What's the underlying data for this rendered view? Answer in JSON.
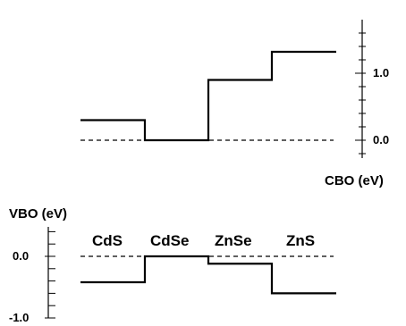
{
  "colors": {
    "line": "#000000",
    "background": "#ffffff"
  },
  "chart_data": [
    {
      "type": "line",
      "title": "",
      "xlabel": "",
      "ylabel": "CBO (eV)",
      "ylim": [
        -0.1,
        1.6
      ],
      "categories": [
        "CdS",
        "CdSe",
        "ZnSe",
        "ZnS"
      ],
      "values": [
        0.3,
        0.0,
        0.9,
        1.32
      ],
      "y_ticks": [
        0.0,
        1.0
      ],
      "y_tick_labels": [
        "0.0",
        "1.0"
      ],
      "zero_line": true,
      "axis_side": "right",
      "grid": false
    },
    {
      "type": "line",
      "title": "",
      "xlabel": "",
      "ylabel": "VBO (eV)",
      "ylim": [
        -1.0,
        0.45
      ],
      "categories": [
        "CdS",
        "CdSe",
        "ZnSe",
        "ZnS"
      ],
      "values": [
        -0.42,
        0.0,
        -0.12,
        -0.6
      ],
      "y_ticks": [
        0.0,
        -1.0
      ],
      "y_tick_labels": [
        "0.0",
        "-1.0"
      ],
      "zero_line": true,
      "axis_side": "left",
      "grid": false
    }
  ]
}
